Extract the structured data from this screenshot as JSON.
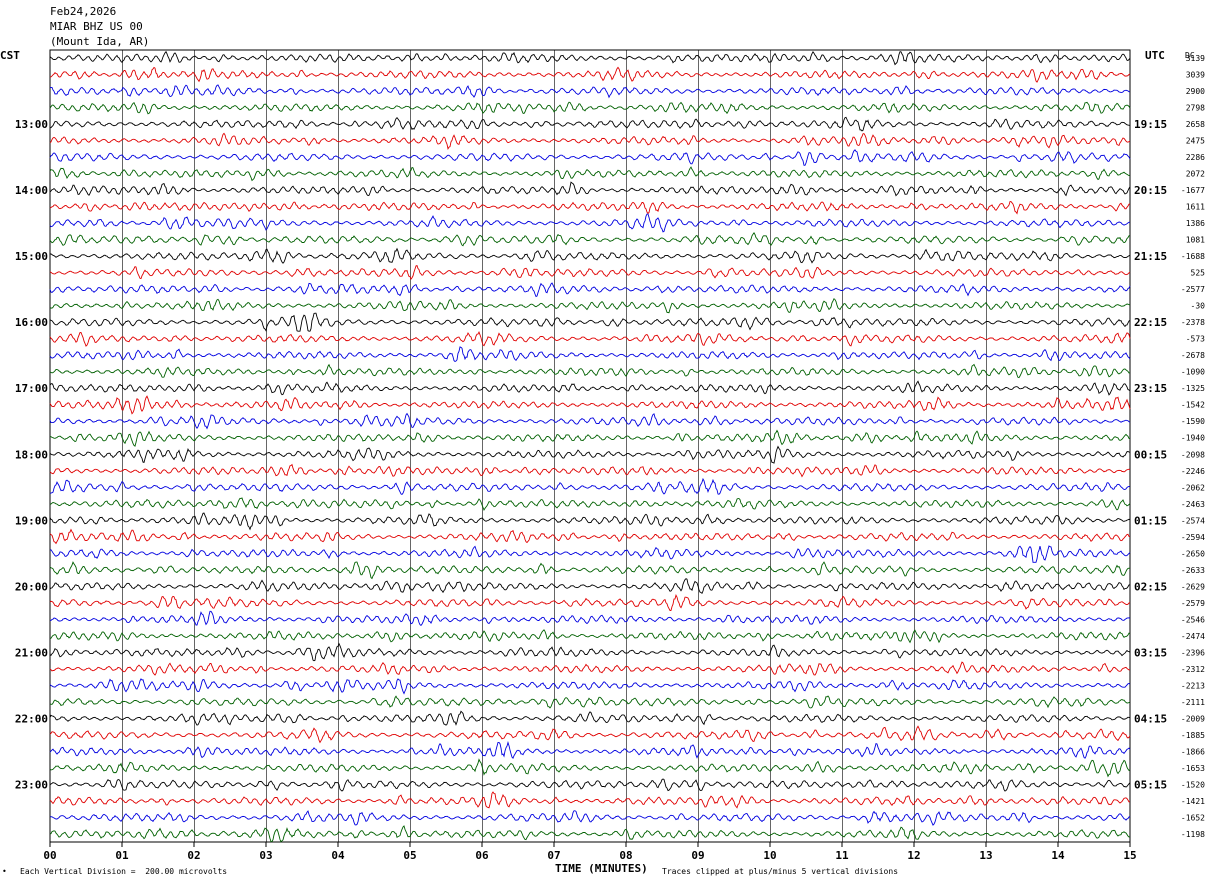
{
  "header": {
    "date": "Feb24,2026",
    "station": "MIAR BHZ US 00",
    "location": "(Mount Ida, AR)"
  },
  "footer": {
    "scale_note": "Each Vertical Division =  200.00 microvolts",
    "clip_note": "Traces clipped at plus/minus 5 vertical divisions",
    "corner_mark": "•"
  },
  "colors": {
    "trace_cycle": [
      "#000000",
      "#e00000",
      "#0000e0",
      "#006000"
    ],
    "grid": "#000000"
  },
  "chart_data": {
    "type": "line",
    "title": "",
    "xlabel": "TIME (MINUTES)",
    "ylabel": "",
    "left_axis_label": "CST",
    "right_axis_label": "UTC",
    "dc_label": "DC",
    "xlim": [
      0,
      15
    ],
    "x_ticks": [
      "00",
      "01",
      "02",
      "03",
      "04",
      "05",
      "06",
      "07",
      "08",
      "09",
      "10",
      "11",
      "12",
      "13",
      "14",
      "15"
    ],
    "rows": 48,
    "row_minutes": 15,
    "left_hour_labels": [
      {
        "row": 4,
        "label": "13:00"
      },
      {
        "row": 8,
        "label": "14:00"
      },
      {
        "row": 12,
        "label": "15:00"
      },
      {
        "row": 16,
        "label": "16:00"
      },
      {
        "row": 20,
        "label": "17:00"
      },
      {
        "row": 24,
        "label": "18:00"
      },
      {
        "row": 28,
        "label": "19:00"
      },
      {
        "row": 32,
        "label": "20:00"
      },
      {
        "row": 36,
        "label": "21:00"
      },
      {
        "row": 40,
        "label": "22:00"
      },
      {
        "row": 44,
        "label": "23:00"
      }
    ],
    "right_hour_labels": [
      {
        "row": 4,
        "label": "19:15"
      },
      {
        "row": 8,
        "label": "20:15"
      },
      {
        "row": 12,
        "label": "21:15"
      },
      {
        "row": 16,
        "label": "22:15"
      },
      {
        "row": 20,
        "label": "23:15"
      },
      {
        "row": 24,
        "label": "00:15"
      },
      {
        "row": 28,
        "label": "01:15"
      },
      {
        "row": 32,
        "label": "02:15"
      },
      {
        "row": 36,
        "label": "03:15"
      },
      {
        "row": 40,
        "label": "04:15"
      },
      {
        "row": 44,
        "label": "05:15"
      }
    ],
    "dc_offsets": [
      "3139",
      "3039",
      "2900",
      "2798",
      "2658",
      "2475",
      "2286",
      "2072",
      "-1677",
      "1611",
      "1386",
      "1081",
      "-1688",
      "525",
      "-2577",
      "-30",
      "-2378",
      "-573",
      "-2678",
      "-1090",
      "-1325",
      "-1542",
      "-1590",
      "-1940",
      "-2098",
      "-2246",
      "-2062",
      "-2463",
      "-2574",
      "-2594",
      "-2650",
      "-2633",
      "-2629",
      "-2579",
      "-2546",
      "-2474",
      "-2396",
      "-2312",
      "-2213",
      "-2111",
      "-2009",
      "-1885",
      "-1866",
      "-1653",
      "-1520",
      "-1421",
      "-1652",
      "-1198"
    ]
  }
}
